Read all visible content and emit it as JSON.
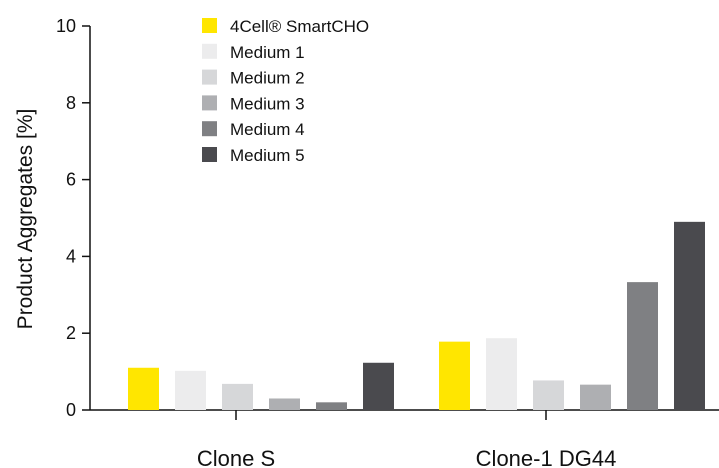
{
  "chart_data": {
    "type": "bar",
    "title": "",
    "xlabel": "",
    "ylabel": "Product Aggregates [%]",
    "ylim": [
      0,
      10
    ],
    "yticks": [
      0,
      2,
      4,
      6,
      8,
      10
    ],
    "categories": [
      "Clone S",
      "Clone-1 DG44"
    ],
    "legend_position": "top-left",
    "grid": false,
    "series": [
      {
        "name": "4Cell® SmartCHO",
        "color": "#ffe600",
        "values": [
          1.1,
          1.78
        ]
      },
      {
        "name": "Medium 1",
        "color": "#ececed",
        "values": [
          1.02,
          1.87
        ]
      },
      {
        "name": "Medium 2",
        "color": "#d6d7d9",
        "values": [
          0.68,
          0.77
        ]
      },
      {
        "name": "Medium 3",
        "color": "#aeafb2",
        "values": [
          0.3,
          0.66
        ]
      },
      {
        "name": "Medium 4",
        "color": "#7f8083",
        "values": [
          0.2,
          3.33
        ]
      },
      {
        "name": "Medium 5",
        "color": "#4a4a4e",
        "values": [
          1.23,
          4.9
        ]
      }
    ]
  }
}
